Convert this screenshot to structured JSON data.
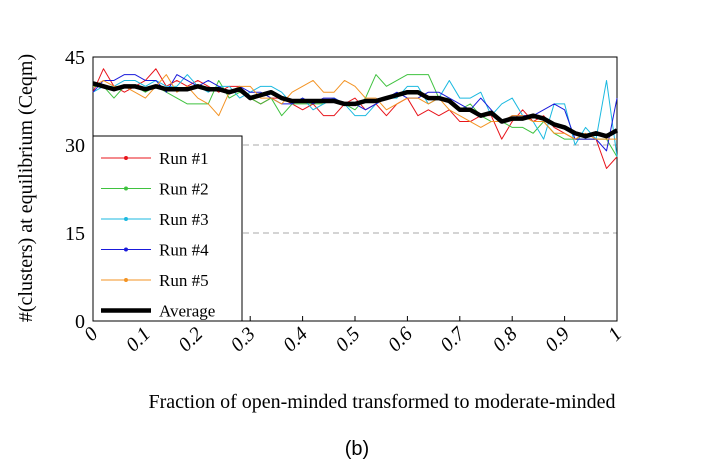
{
  "chart_data": {
    "type": "line",
    "x": [
      0,
      0.02,
      0.04,
      0.06,
      0.08,
      0.1,
      0.12,
      0.14,
      0.16,
      0.18,
      0.2,
      0.22,
      0.24,
      0.26,
      0.28,
      0.3,
      0.32,
      0.34,
      0.36,
      0.38,
      0.4,
      0.42,
      0.44,
      0.46,
      0.48,
      0.5,
      0.52,
      0.54,
      0.56,
      0.58,
      0.6,
      0.62,
      0.64,
      0.66,
      0.68,
      0.7,
      0.72,
      0.74,
      0.76,
      0.78,
      0.8,
      0.82,
      0.84,
      0.86,
      0.88,
      0.9,
      0.92,
      0.94,
      0.96,
      0.98,
      1
    ],
    "series": [
      {
        "name": "Run #1",
        "color": "#e8141b",
        "values": [
          39,
          43,
          40,
          39,
          40,
          41,
          43,
          40,
          41,
          40,
          41,
          40,
          39,
          40,
          40,
          38,
          37,
          38,
          38,
          37,
          36,
          37,
          35,
          35,
          37,
          38,
          36,
          37,
          35,
          37,
          38,
          35,
          36,
          35,
          36,
          34,
          34,
          35,
          35,
          31,
          34,
          36,
          34,
          35,
          33,
          32,
          31,
          31,
          31,
          26,
          28
        ]
      },
      {
        "name": "Run #2",
        "color": "#3fc23f",
        "values": [
          40,
          40,
          38,
          40,
          40,
          39,
          40,
          39,
          38,
          37,
          37,
          37,
          41,
          38,
          39,
          38,
          37,
          38,
          35,
          37,
          37,
          37,
          37,
          38,
          37,
          36,
          38,
          42,
          40,
          41,
          42,
          42,
          42,
          38,
          38,
          36,
          37,
          35,
          34,
          34,
          33,
          33,
          32,
          34,
          32,
          31,
          31,
          31,
          31,
          31,
          28
        ]
      },
      {
        "name": "Run #3",
        "color": "#1bb9e0",
        "values": [
          39,
          40,
          40,
          41,
          41,
          40,
          41,
          40,
          40,
          42,
          40,
          39,
          40,
          40,
          38,
          39,
          40,
          40,
          39,
          37,
          38,
          36,
          37,
          38,
          37,
          35,
          35,
          37,
          38,
          38,
          40,
          40,
          37,
          38,
          41,
          38,
          38,
          39,
          35,
          37,
          38,
          35,
          34,
          31,
          37,
          37,
          30,
          33,
          31,
          41,
          28
        ]
      },
      {
        "name": "Run #4",
        "color": "#1a1adb",
        "values": [
          39,
          41,
          41,
          42,
          42,
          41,
          41,
          39,
          42,
          41,
          40,
          41,
          40,
          39,
          40,
          39,
          39,
          38,
          37,
          37,
          38,
          37,
          38,
          38,
          37,
          37,
          36,
          37,
          38,
          39,
          38,
          38,
          39,
          39,
          38,
          37,
          36,
          38,
          36,
          34,
          35,
          35,
          35,
          36,
          37,
          36,
          31,
          31,
          31,
          29,
          38
        ]
      },
      {
        "name": "Run #5",
        "color": "#f39323",
        "values": [
          40,
          41,
          40,
          40,
          39,
          38,
          40,
          42,
          39,
          40,
          38,
          37,
          35,
          39,
          40,
          40,
          38,
          38,
          37,
          39,
          40,
          41,
          39,
          39,
          41,
          40,
          38,
          38,
          36,
          37,
          38,
          38,
          37,
          38,
          36,
          35,
          34,
          33,
          34,
          34,
          35,
          35,
          34,
          34,
          32,
          32,
          31,
          32,
          31,
          31,
          31
        ]
      },
      {
        "name": "Average",
        "color": "#000000",
        "values": [
          40.5,
          40,
          39.5,
          40,
          40,
          39.5,
          40,
          39.5,
          39.5,
          39.5,
          40,
          39.5,
          39.5,
          39,
          39.5,
          38,
          38.5,
          39,
          38,
          37.5,
          37.5,
          37.5,
          37.5,
          37.5,
          37,
          37,
          37.5,
          37.5,
          38,
          38.5,
          39,
          39,
          38,
          38,
          37.5,
          36,
          36,
          35,
          35.5,
          34,
          34.5,
          34.5,
          35,
          34.5,
          33.5,
          33,
          32,
          31.5,
          32,
          31.5,
          32.5
        ]
      }
    ],
    "xlim": [
      0,
      1
    ],
    "xticks": [
      0,
      0.1,
      0.2,
      0.3,
      0.4,
      0.5,
      0.6,
      0.7,
      0.8,
      0.9,
      1
    ],
    "ylim": [
      0,
      45
    ],
    "yticks": [
      0,
      15,
      30,
      45
    ],
    "xlabel": "Fraction of open-minded transformed to moderate-minded",
    "ylabel": "#(clusters) at equilibrium (Ceqm)",
    "caption": "(b)",
    "grid": true,
    "legend": "lower left"
  }
}
